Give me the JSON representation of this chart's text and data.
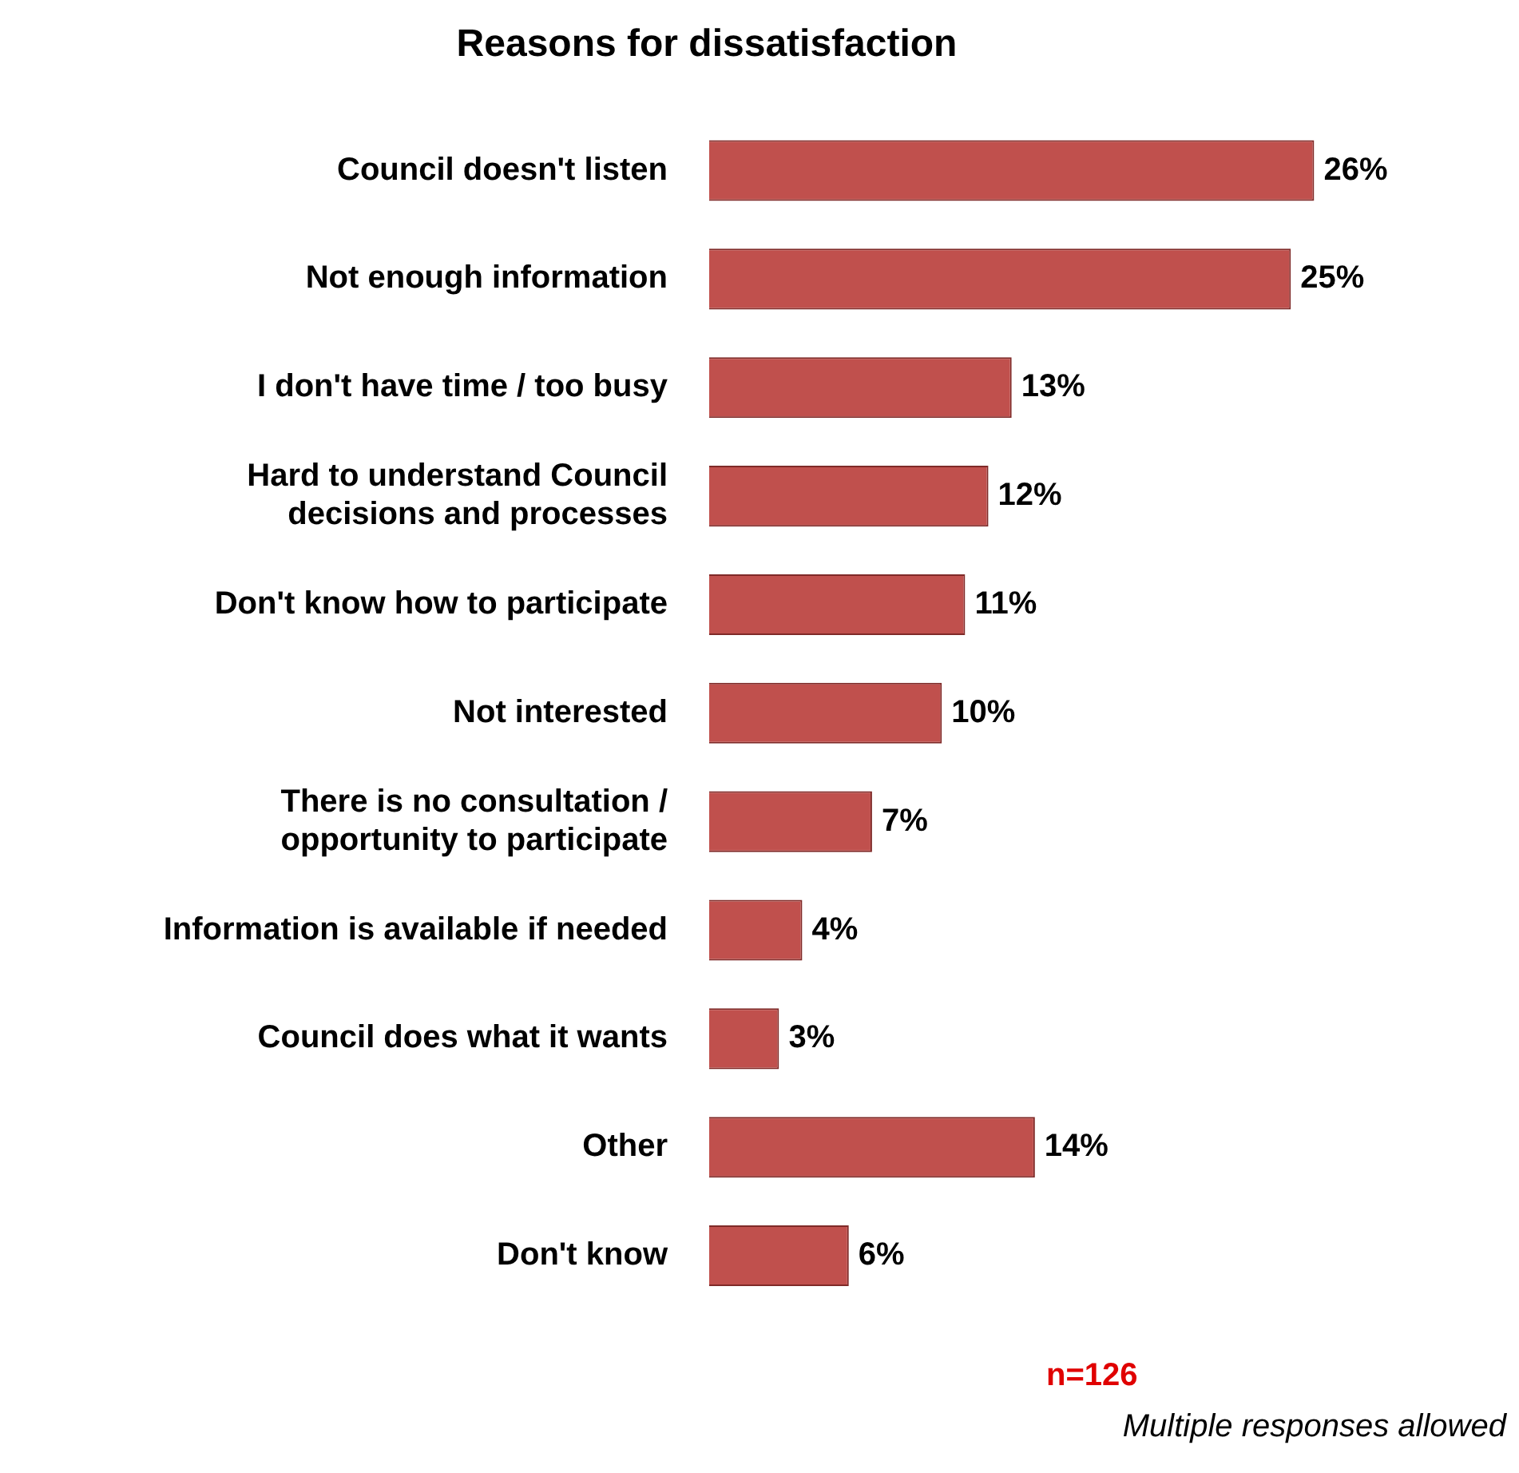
{
  "chart_data": {
    "type": "bar",
    "orientation": "horizontal",
    "title": "Reasons for dissatisfaction",
    "categories": [
      "Council doesn't listen",
      "Not enough information",
      "I don't have time / too busy",
      "Hard to understand Council decisions and processes",
      "Don't know how to participate",
      "Not interested",
      "There is no consultation / opportunity to participate",
      "Information is available if needed",
      "Council does what it wants",
      "Other",
      "Don't know"
    ],
    "values": [
      26,
      25,
      13,
      12,
      11,
      10,
      7,
      4,
      3,
      14,
      6
    ],
    "value_labels": [
      "26%",
      "25%",
      "13%",
      "12%",
      "11%",
      "10%",
      "7%",
      "4%",
      "3%",
      "14%",
      "6%"
    ],
    "color": "#c0504d",
    "legend": false,
    "annotations": [
      "n=126",
      "Multiple responses allowed"
    ]
  }
}
